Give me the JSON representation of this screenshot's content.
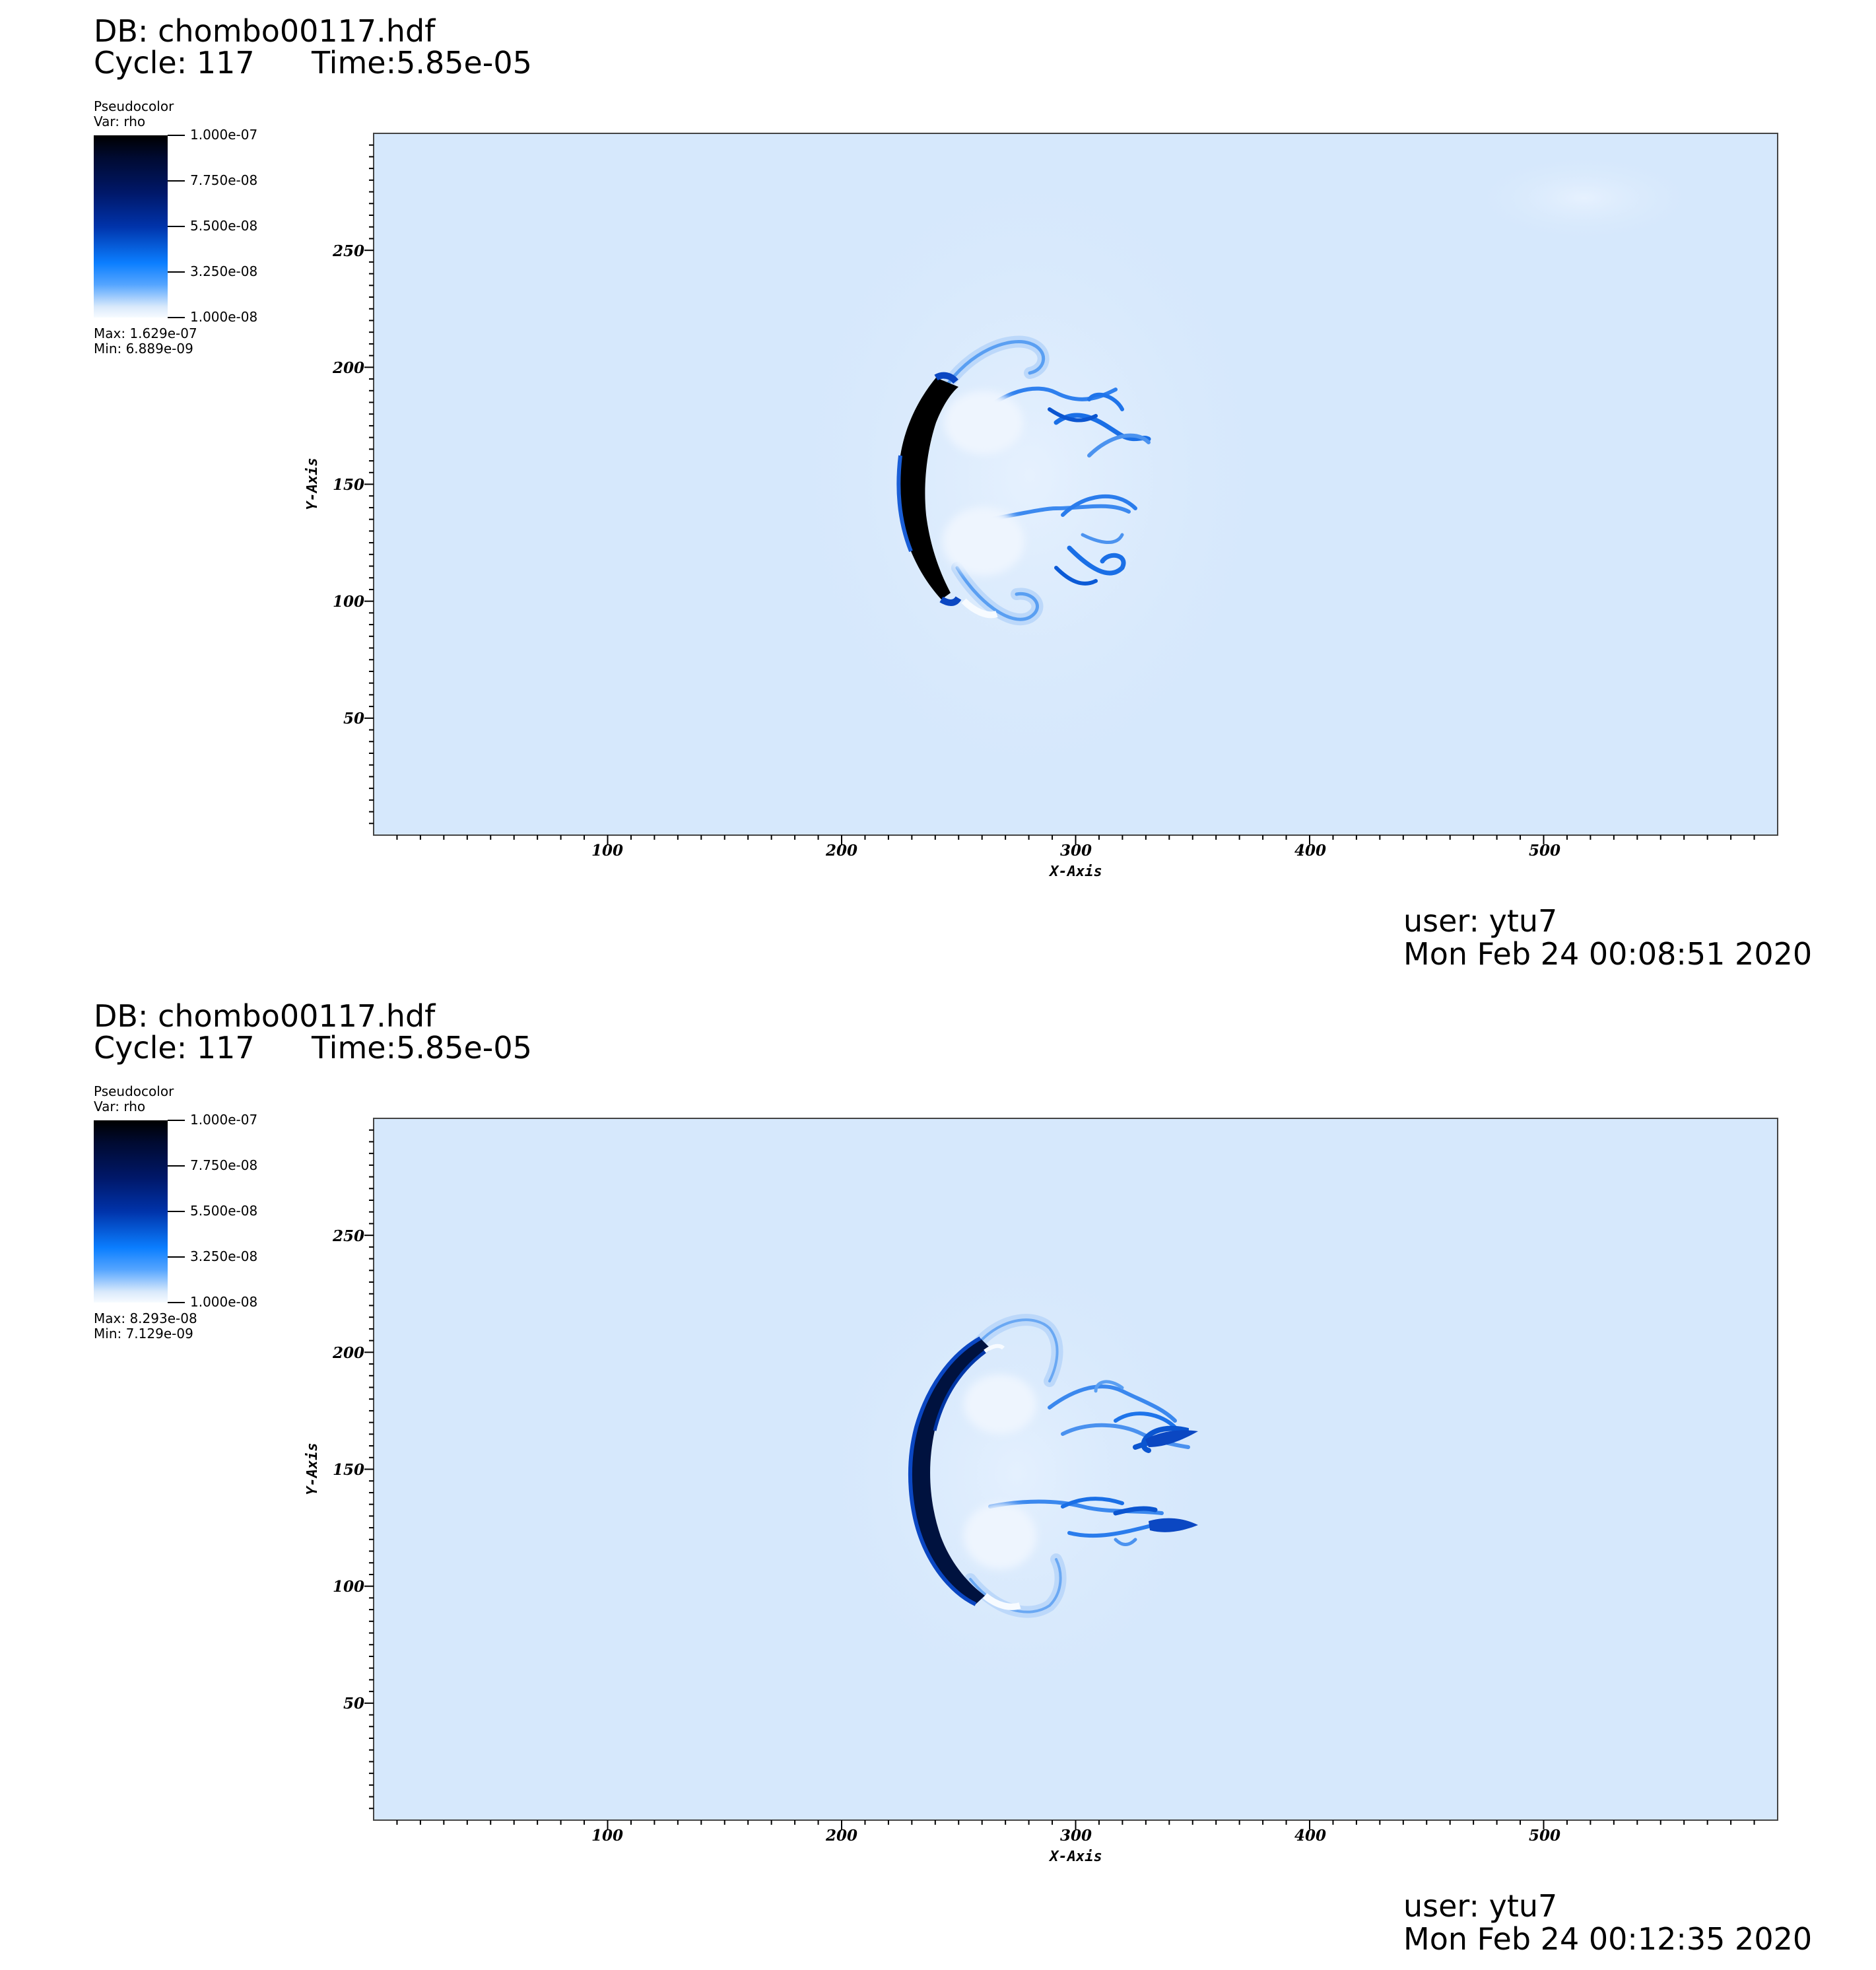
{
  "panels": [
    {
      "db_title": "DB: chombo00117.hdf",
      "cycle": "Cycle: 117",
      "time": "Time:5.85e-05",
      "legend": {
        "plot_type": "Pseudocolor",
        "var": "Var: rho",
        "ticks": [
          "1.000e-07",
          "7.750e-08",
          "5.500e-08",
          "3.250e-08",
          "1.000e-08"
        ],
        "max": "Max:  1.629e-07",
        "min": "Min:  6.889e-09"
      },
      "user": "user: ytu7",
      "date": "Mon Feb 24 00:08:51 2020"
    },
    {
      "db_title": "DB: chombo00117.hdf",
      "cycle": "Cycle: 117",
      "time": "Time:5.85e-05",
      "legend": {
        "plot_type": "Pseudocolor",
        "var": "Var: rho",
        "ticks": [
          "1.000e-07",
          "7.750e-08",
          "5.500e-08",
          "3.250e-08",
          "1.000e-08"
        ],
        "max": "Max:  8.293e-08",
        "min": "Min:  7.129e-09"
      },
      "user": "user: ytu7",
      "date": "Mon Feb 24 00:12:35 2020"
    }
  ],
  "colors": {
    "background_field": "#d6e8fc",
    "dense_black": "#000000",
    "dense_navy": "#00186a",
    "mid_blue": "#1f78f0",
    "light_wisp": "#7fb3f5",
    "near_white": "#f5f9ff"
  },
  "chart_data": [
    {
      "type": "heatmap",
      "title": "",
      "xlabel": "X-Axis",
      "ylabel": "Y-Axis",
      "xlim": [
        0,
        600
      ],
      "ylim": [
        0,
        300
      ],
      "x_ticks": [
        100,
        200,
        300,
        400,
        500
      ],
      "y_ticks": [
        50,
        100,
        150,
        200,
        250
      ],
      "colormap_range": [
        1e-08,
        1e-07
      ],
      "variable": "rho",
      "features": [
        {
          "kind": "dense_front",
          "x_center": 230,
          "y_range": [
            108,
            192
          ],
          "width": 12
        },
        {
          "kind": "upper_vortex",
          "x": 270,
          "y": 170
        },
        {
          "kind": "lower_vortex",
          "x": 268,
          "y": 128
        },
        {
          "kind": "upper_tail_tip",
          "x": 330,
          "y": 168
        },
        {
          "kind": "lower_tail_tip",
          "x": 325,
          "y": 139
        }
      ]
    },
    {
      "type": "heatmap",
      "title": "",
      "xlabel": "X-Axis",
      "ylabel": "Y-Axis",
      "xlim": [
        0,
        600
      ],
      "ylim": [
        0,
        300
      ],
      "x_ticks": [
        100,
        200,
        300,
        400,
        500
      ],
      "y_ticks": [
        50,
        100,
        150,
        200,
        250
      ],
      "colormap_range": [
        1e-08,
        1e-07
      ],
      "variable": "rho",
      "features": [
        {
          "kind": "dense_front",
          "x_center": 232,
          "y_range": [
            97,
            204
          ],
          "width": 10
        },
        {
          "kind": "upper_vortex",
          "x": 278,
          "y": 180
        },
        {
          "kind": "lower_vortex",
          "x": 278,
          "y": 118
        },
        {
          "kind": "upper_tail_tip",
          "x": 335,
          "y": 168
        },
        {
          "kind": "lower_tail_tip",
          "x": 335,
          "y": 127
        }
      ]
    }
  ]
}
